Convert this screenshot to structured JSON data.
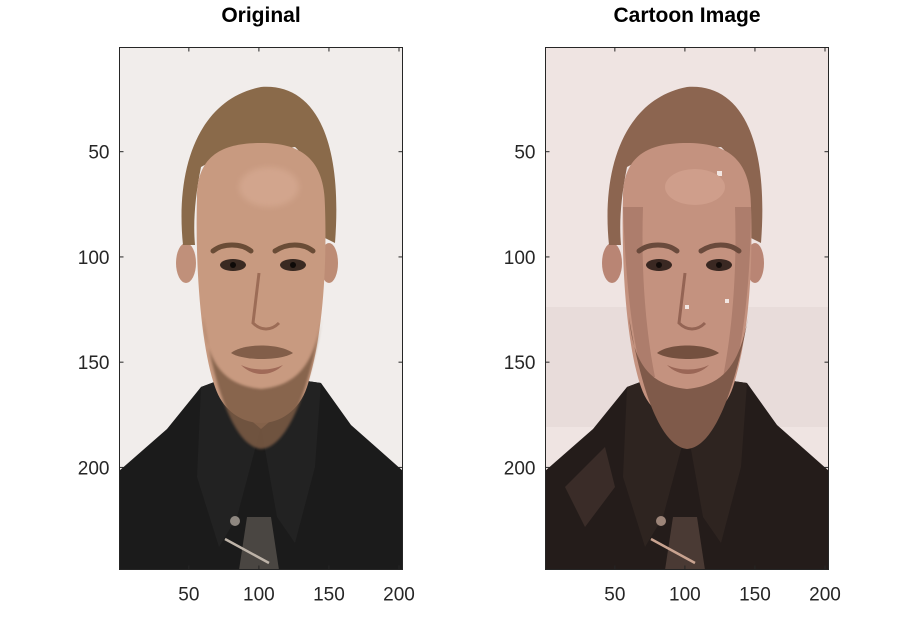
{
  "chart_data": [
    {
      "type": "image",
      "title": "Original",
      "xlabel": "",
      "ylabel": "",
      "xlim": [
        0.5,
        202.5
      ],
      "ylim": [
        0.5,
        248.5
      ],
      "y_direction": "reverse",
      "xticks": [
        50,
        100,
        150,
        200
      ],
      "yticks": [
        50,
        100,
        150,
        200
      ],
      "xtick_labels": [
        "50",
        "100",
        "150",
        "200"
      ],
      "ytick_labels": [
        "50",
        "100",
        "150",
        "200"
      ],
      "grid": false,
      "style": "photo",
      "colors": {
        "background": "#ece7e4",
        "hair": "#8a6a4a",
        "skin": "#c89a80",
        "beard": "#7d5c44",
        "jacket": "#1b1b1b",
        "shirt": "#4a4642"
      }
    },
    {
      "type": "image",
      "title": "Cartoon Image",
      "xlabel": "",
      "ylabel": "",
      "xlim": [
        0.5,
        202.5
      ],
      "ylim": [
        0.5,
        248.5
      ],
      "y_direction": "reverse",
      "xticks": [
        50,
        100,
        150,
        200
      ],
      "yticks": [
        50,
        100,
        150,
        200
      ],
      "xtick_labels": [
        "50",
        "100",
        "150",
        "200"
      ],
      "ytick_labels": [
        "50",
        "100",
        "150",
        "200"
      ],
      "grid": false,
      "style": "posterized",
      "colors": {
        "background": "#efe4e2",
        "hair": "#8c6550",
        "skin": "#c4927f",
        "beard": "#7f5a4a",
        "jacket": "#241c1a",
        "shirt": "#4a3a34"
      }
    }
  ]
}
